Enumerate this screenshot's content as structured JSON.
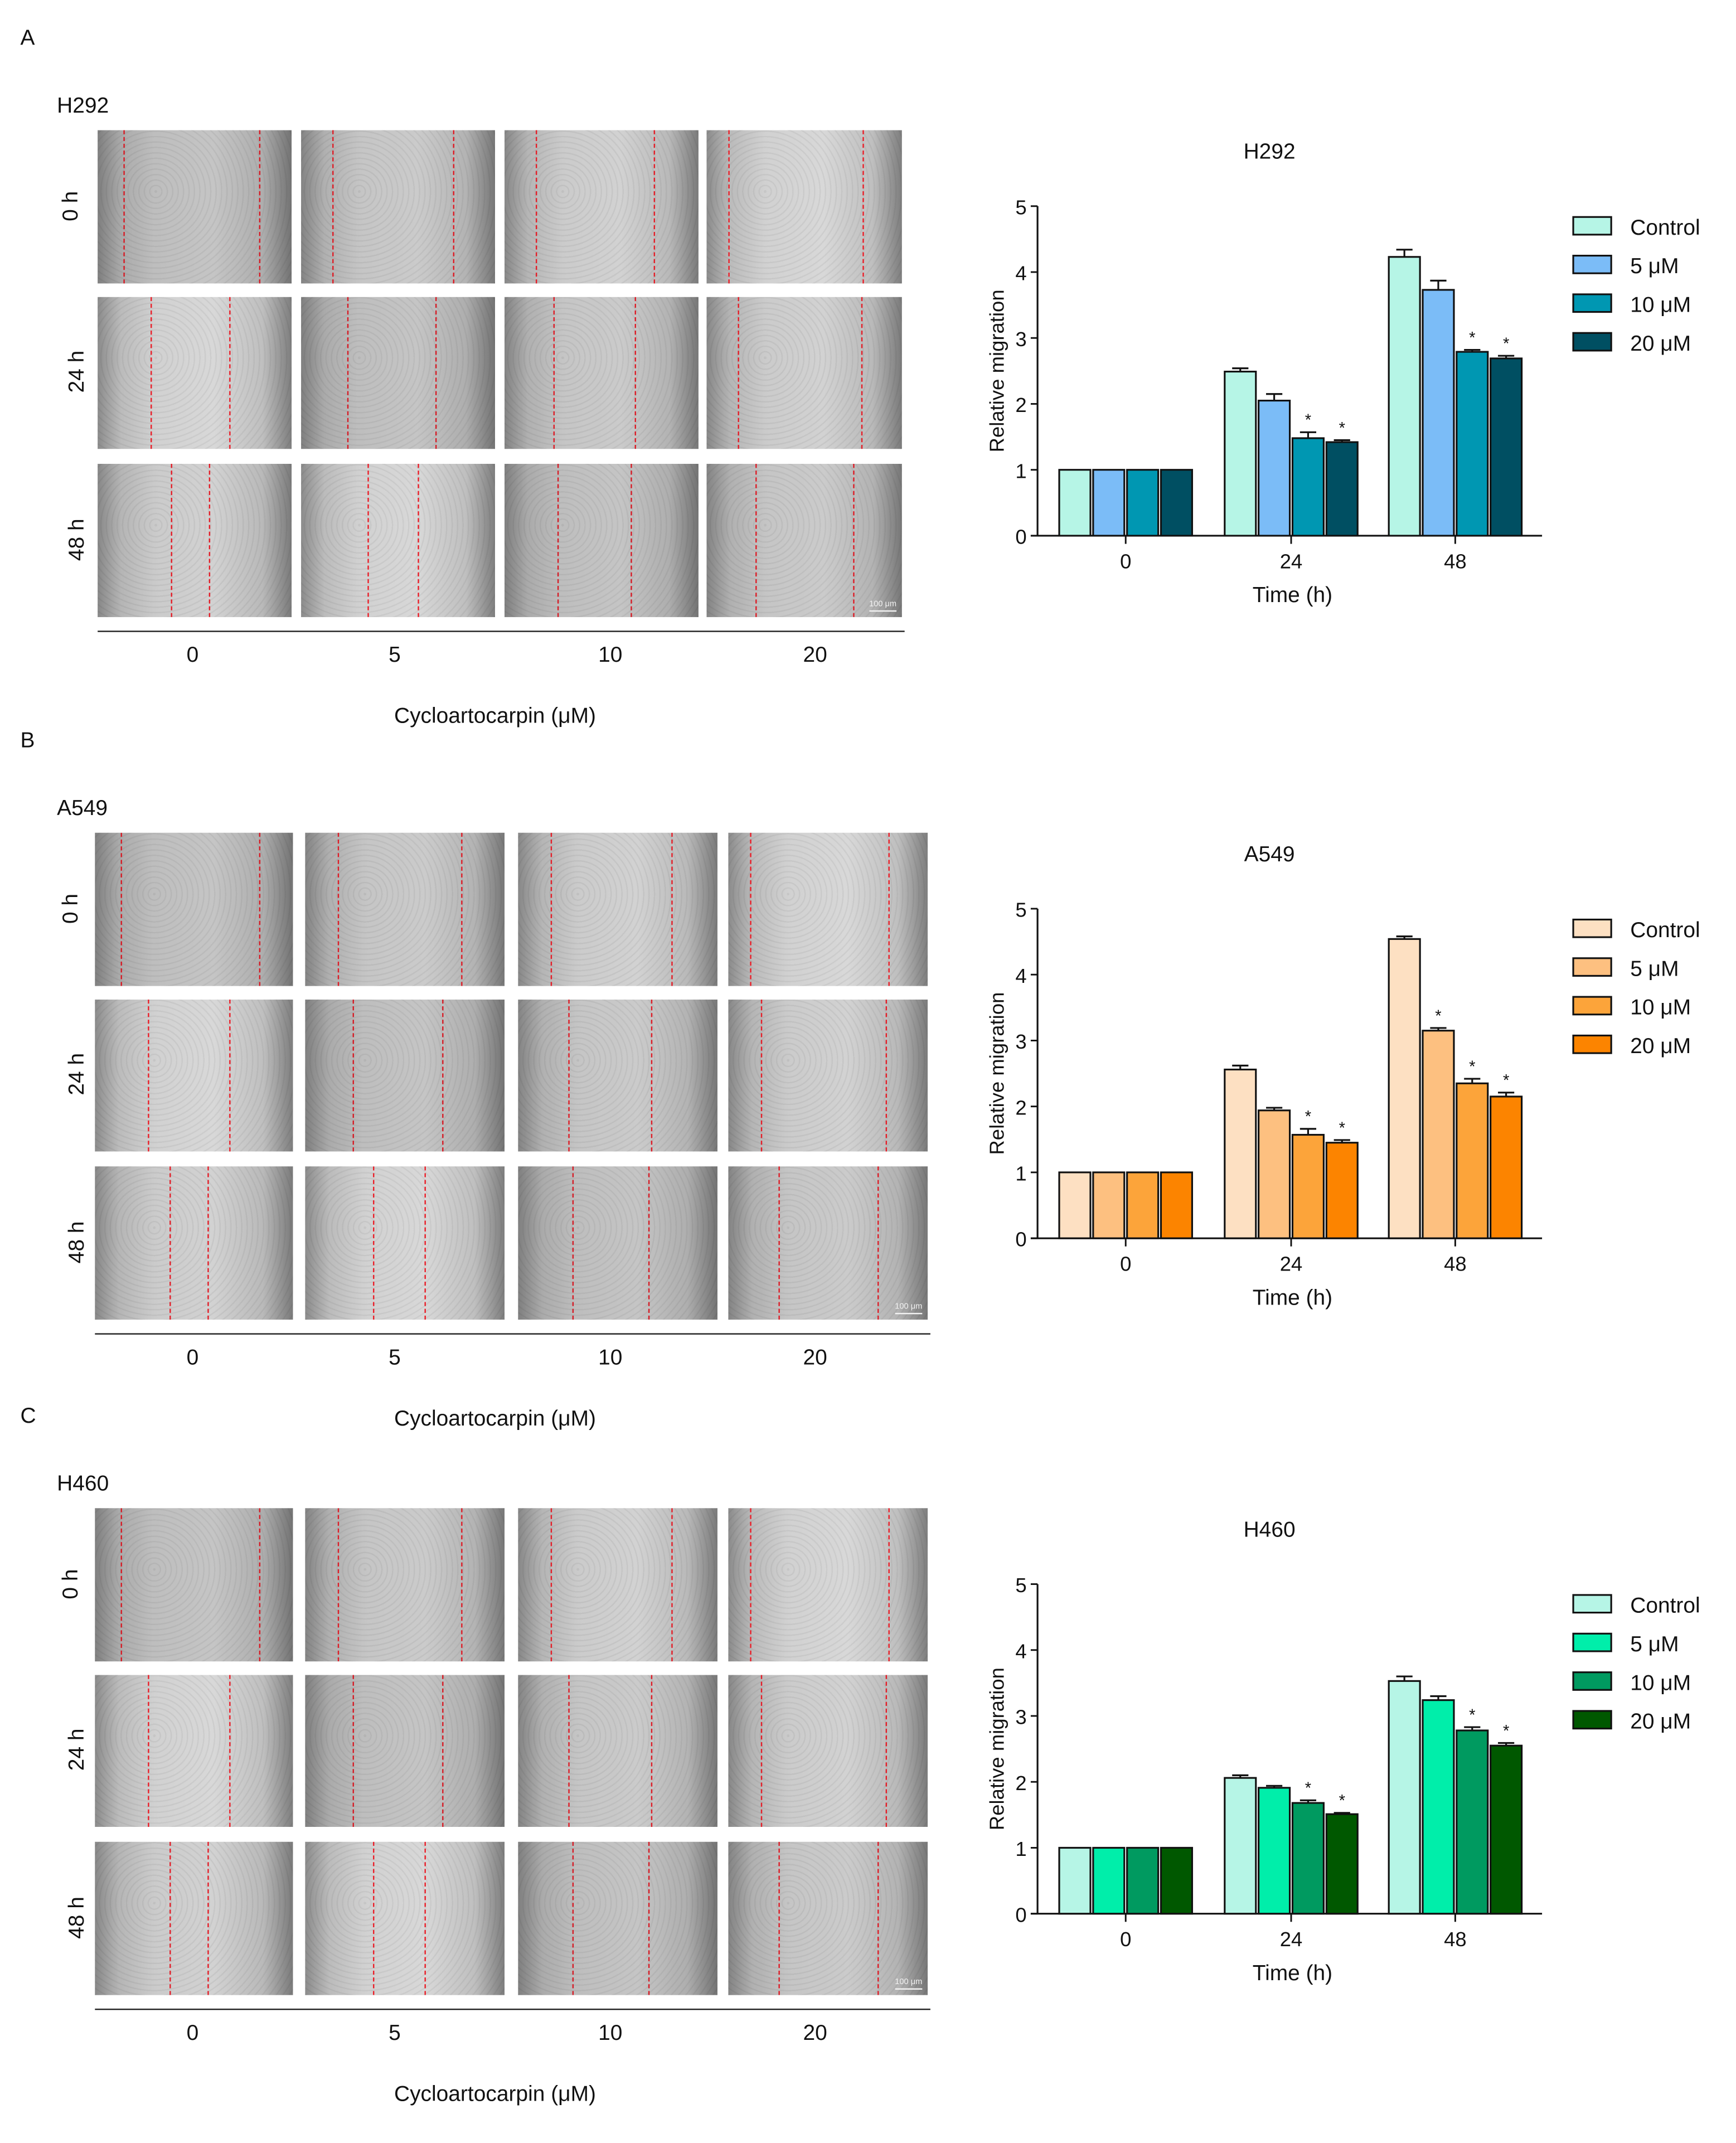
{
  "figure": {
    "panels": [
      {
        "letter": "A",
        "cell_line": "H292",
        "row_labels": [
          "0 h",
          "24 h",
          "48 h"
        ],
        "col_labels": [
          "0",
          "5",
          "10",
          "20"
        ],
        "xlabel": "Cycloartocarpin (μM)",
        "scale_bar": "100 μm"
      },
      {
        "letter": "B",
        "cell_line": "A549",
        "row_labels": [
          "0 h",
          "24 h",
          "48 h"
        ],
        "col_labels": [
          "0",
          "5",
          "10",
          "20"
        ],
        "xlabel": "Cycloartocarpin (μM)",
        "scale_bar": "100 μm"
      },
      {
        "letter": "C",
        "cell_line": "H460",
        "row_labels": [
          "0 h",
          "24 h",
          "48 h"
        ],
        "col_labels": [
          "0",
          "5",
          "10",
          "20"
        ],
        "xlabel": "Cycloartocarpin (μM)",
        "scale_bar": "100 μm"
      }
    ]
  },
  "chart_data": [
    {
      "type": "bar",
      "title": "H292",
      "xlabel": "Time (h)",
      "ylabel": "Relative migration",
      "ylim": [
        0,
        5
      ],
      "yticks": [
        "0",
        "1",
        "2",
        "3",
        "4",
        "5"
      ],
      "categories": [
        "0",
        "24",
        "48"
      ],
      "legend_position": "right",
      "series": [
        {
          "name": "Control",
          "color": "#b6f5e6",
          "values": [
            1,
            2.49,
            4.23
          ],
          "errors": [
            0,
            0.05,
            0.11
          ],
          "significant": [
            false,
            false,
            false
          ]
        },
        {
          "name": "5 μM",
          "color": "#7bbcf7",
          "values": [
            1,
            2.05,
            3.73
          ],
          "errors": [
            0,
            0.1,
            0.14
          ],
          "significant": [
            false,
            false,
            false
          ]
        },
        {
          "name": "10 μM",
          "color": "#0097b2",
          "values": [
            1,
            1.48,
            2.79
          ],
          "errors": [
            0,
            0.09,
            0.03
          ],
          "significant": [
            false,
            true,
            true
          ]
        },
        {
          "name": "20 μM",
          "color": "#004f62",
          "values": [
            1,
            1.42,
            2.69
          ],
          "errors": [
            0,
            0.03,
            0.04
          ],
          "significant": [
            false,
            true,
            true
          ]
        }
      ],
      "sig_marker": "*"
    },
    {
      "type": "bar",
      "title": "A549",
      "xlabel": "Time (h)",
      "ylabel": "Relative migration",
      "ylim": [
        0,
        5
      ],
      "yticks": [
        "0",
        "1",
        "2",
        "3",
        "4",
        "5"
      ],
      "categories": [
        "0",
        "24",
        "48"
      ],
      "legend_position": "right",
      "series": [
        {
          "name": "Control",
          "color": "#fde0c2",
          "values": [
            1,
            2.56,
            4.54
          ],
          "errors": [
            0,
            0.06,
            0.04
          ],
          "significant": [
            false,
            false,
            false
          ]
        },
        {
          "name": "5 μM",
          "color": "#fdc080",
          "values": [
            1,
            1.94,
            3.15
          ],
          "errors": [
            0,
            0.04,
            0.04
          ],
          "significant": [
            false,
            false,
            true
          ]
        },
        {
          "name": "10 μM",
          "color": "#fca43a",
          "values": [
            1,
            1.57,
            2.35
          ],
          "errors": [
            0,
            0.09,
            0.07
          ],
          "significant": [
            false,
            true,
            true
          ]
        },
        {
          "name": "20 μM",
          "color": "#fc8400",
          "values": [
            1,
            1.45,
            2.15
          ],
          "errors": [
            0,
            0.04,
            0.06
          ],
          "significant": [
            false,
            true,
            true
          ]
        }
      ],
      "sig_marker": "*"
    },
    {
      "type": "bar",
      "title": "H460",
      "xlabel": "Time (h)",
      "ylabel": "Relative migration",
      "ylim": [
        0,
        5
      ],
      "yticks": [
        "0",
        "1",
        "2",
        "3",
        "4",
        "5"
      ],
      "categories": [
        "0",
        "24",
        "48"
      ],
      "legend_position": "right",
      "series": [
        {
          "name": "Control",
          "color": "#b6f5e6",
          "values": [
            1,
            2.06,
            3.53
          ],
          "errors": [
            0,
            0.04,
            0.07
          ],
          "significant": [
            false,
            false,
            false
          ]
        },
        {
          "name": "5 μM",
          "color": "#00eeaa",
          "values": [
            1,
            1.91,
            3.24
          ],
          "errors": [
            0,
            0.03,
            0.06
          ],
          "significant": [
            false,
            false,
            false
          ]
        },
        {
          "name": "10 μM",
          "color": "#009a60",
          "values": [
            1,
            1.68,
            2.78
          ],
          "errors": [
            0,
            0.04,
            0.05
          ],
          "significant": [
            false,
            true,
            true
          ]
        },
        {
          "name": "20 μM",
          "color": "#005800",
          "values": [
            1,
            1.51,
            2.55
          ],
          "errors": [
            0,
            0.02,
            0.04
          ],
          "significant": [
            false,
            true,
            true
          ]
        }
      ],
      "sig_marker": "*"
    }
  ]
}
